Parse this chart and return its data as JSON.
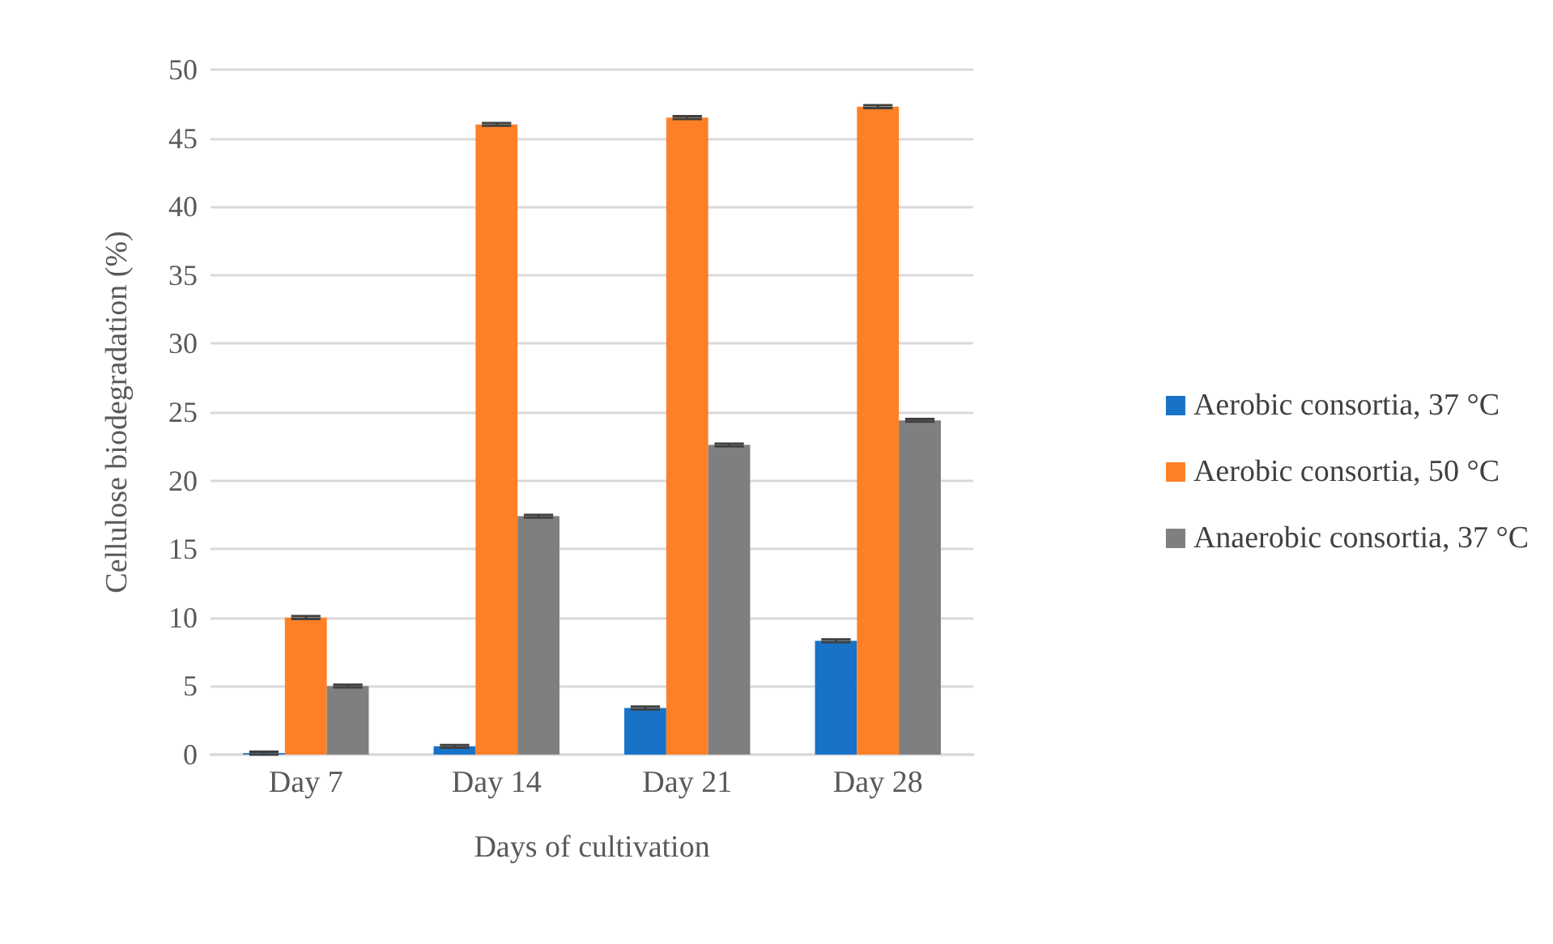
{
  "chart_data": {
    "type": "bar",
    "xlabel": "Days of cultivation",
    "ylabel": "Cellulose biodegradation (%)",
    "categories": [
      "Day 7",
      "Day 14",
      "Day 21",
      "Day 28"
    ],
    "series": [
      {
        "name": "Aerobic consortia, 37 °C",
        "color": "#1872c8",
        "values": [
          0.1,
          0.6,
          3.4,
          8.3
        ],
        "errors": [
          0.1,
          0.1,
          0.1,
          0.1
        ]
      },
      {
        "name": "Aerobic consortia, 50 °C",
        "color": "#ff7f27",
        "values": [
          10,
          46,
          46.5,
          47.3
        ],
        "errors": [
          0.1,
          0.1,
          0.1,
          0.1
        ]
      },
      {
        "name": "Anaerobic consortia, 37 °C",
        "color": "#7f7f7f",
        "values": [
          5,
          17.4,
          22.6,
          24.4
        ],
        "errors": [
          0.1,
          0.1,
          0.1,
          0.1
        ]
      }
    ],
    "ylim": [
      0,
      50
    ],
    "yticks": [
      0,
      5,
      10,
      15,
      20,
      25,
      30,
      35,
      40,
      45,
      50
    ],
    "grid": "y",
    "legend": "right"
  }
}
